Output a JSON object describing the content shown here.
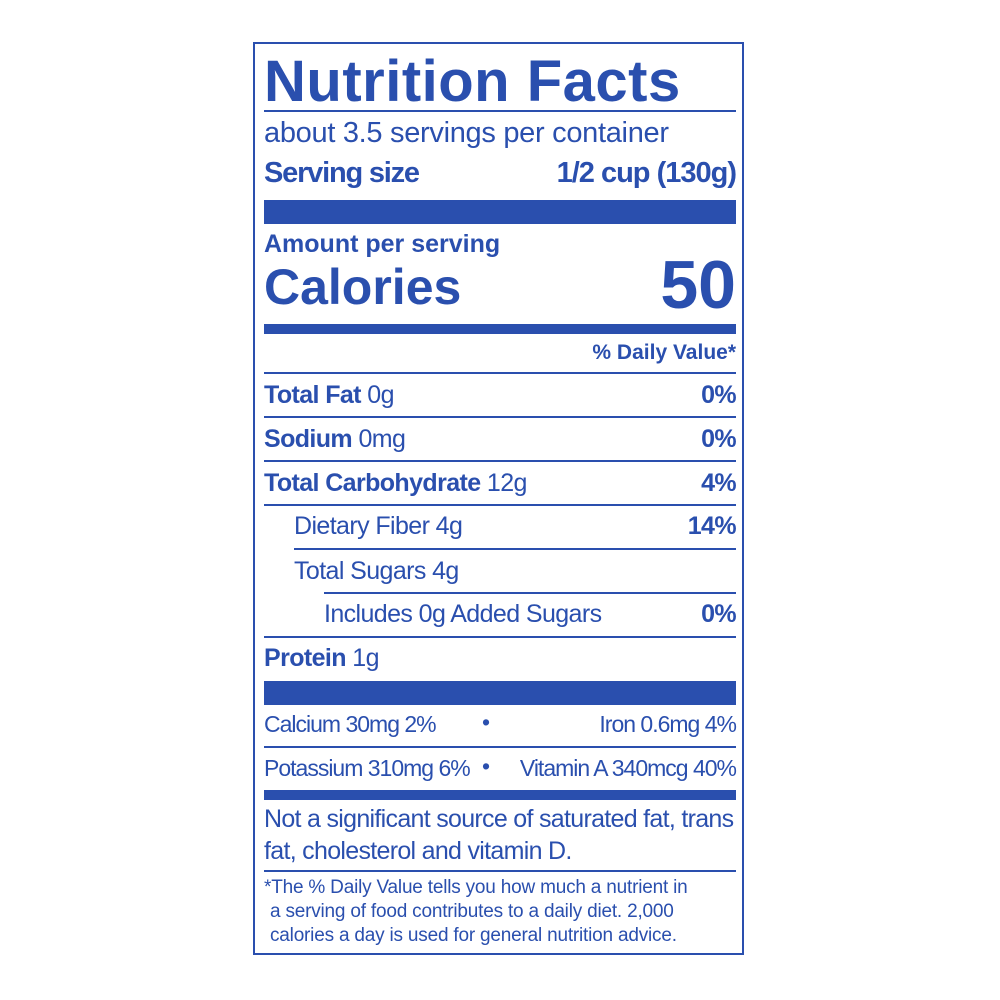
{
  "title": "Nutrition Facts",
  "servings_per_container": "about 3.5 servings per container",
  "serving_size": {
    "label": "Serving size",
    "value": "1/2 cup (130g)"
  },
  "amount_per_serving": "Amount per serving",
  "calories": {
    "label": "Calories",
    "value": "50"
  },
  "daily_value_header": "% Daily Value*",
  "nutrients": [
    {
      "name": "Total Fat",
      "amount": "0g",
      "dv": "0%"
    },
    {
      "name": "Sodium",
      "amount": "0mg",
      "dv": "0%"
    },
    {
      "name": "Total Carbohydrate",
      "amount": "12g",
      "dv": "4%"
    },
    {
      "name": "Dietary Fiber 4g",
      "dv": "14%"
    },
    {
      "name": "Total Sugars 4g",
      "dv": ""
    },
    {
      "name": "Includes 0g Added Sugars",
      "dv": "0%"
    },
    {
      "name": "Protein",
      "amount": "1g"
    }
  ],
  "vitamins": [
    {
      "left": "Calcium 30mg 2%",
      "right": "Iron 0.6mg 4%"
    },
    {
      "left": "Potassium 310mg 6%",
      "right": "Vitamin A 340mcg 40%"
    }
  ],
  "bullet": "•",
  "not_significant": [
    "Not a significant source of saturated fat, trans",
    "fat, cholesterol and vitamin D."
  ],
  "footnote": [
    "*The % Daily Value tells you how much a nutrient in",
    "a serving of food contributes to a daily diet. 2,000",
    "calories a day is used for general nutrition advice."
  ],
  "colors": {
    "ink": "#2a4fae",
    "background": "#ffffff"
  }
}
